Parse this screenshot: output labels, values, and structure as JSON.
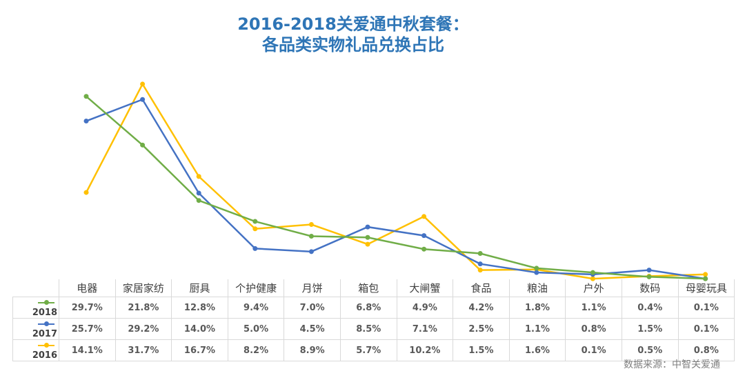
{
  "chart_data": {
    "type": "line",
    "title": "2016-2018关爱通中秋套餐：各品类实物礼品兑换占比",
    "title_lines": [
      "2016-2018关爱通中秋套餐：",
      "各品类实物礼品兑换占比"
    ],
    "categories": [
      "电器",
      "家居家纺",
      "厨具",
      "个护健康",
      "月饼",
      "箱包",
      "大闸蟹",
      "食品",
      "粮油",
      "户外",
      "数码",
      "母婴玩具"
    ],
    "series": [
      {
        "name": "2018",
        "color": "#70ad47",
        "values": [
          29.7,
          21.8,
          12.8,
          9.4,
          7.0,
          6.8,
          4.9,
          4.2,
          1.8,
          1.1,
          0.4,
          0.1
        ],
        "labels": [
          "29.7%",
          "21.8%",
          "12.8%",
          "9.4%",
          "7.0%",
          "6.8%",
          "4.9%",
          "4.2%",
          "1.8%",
          "1.1%",
          "0.4%",
          "0.1%"
        ]
      },
      {
        "name": "2017",
        "color": "#4472c4",
        "values": [
          25.7,
          29.2,
          14.0,
          5.0,
          4.5,
          8.5,
          7.1,
          2.5,
          1.1,
          0.8,
          1.5,
          0.1
        ],
        "labels": [
          "25.7%",
          "29.2%",
          "14.0%",
          "5.0%",
          "4.5%",
          "8.5%",
          "7.1%",
          "2.5%",
          "1.1%",
          "0.8%",
          "1.5%",
          "0.1%"
        ]
      },
      {
        "name": "2016",
        "color": "#ffc000",
        "values": [
          14.1,
          31.7,
          16.7,
          8.2,
          8.9,
          5.7,
          10.2,
          1.5,
          1.6,
          0.1,
          0.5,
          0.8
        ],
        "labels": [
          "14.1%",
          "31.7%",
          "16.7%",
          "8.2%",
          "8.9%",
          "5.7%",
          "10.2%",
          "1.5%",
          "1.6%",
          "0.1%",
          "0.5%",
          "0.8%"
        ]
      }
    ],
    "unit": "%",
    "ylim": [
      0,
      35
    ],
    "grid": false,
    "legend": "data-table"
  },
  "source": "数据来源：中智关爱通"
}
